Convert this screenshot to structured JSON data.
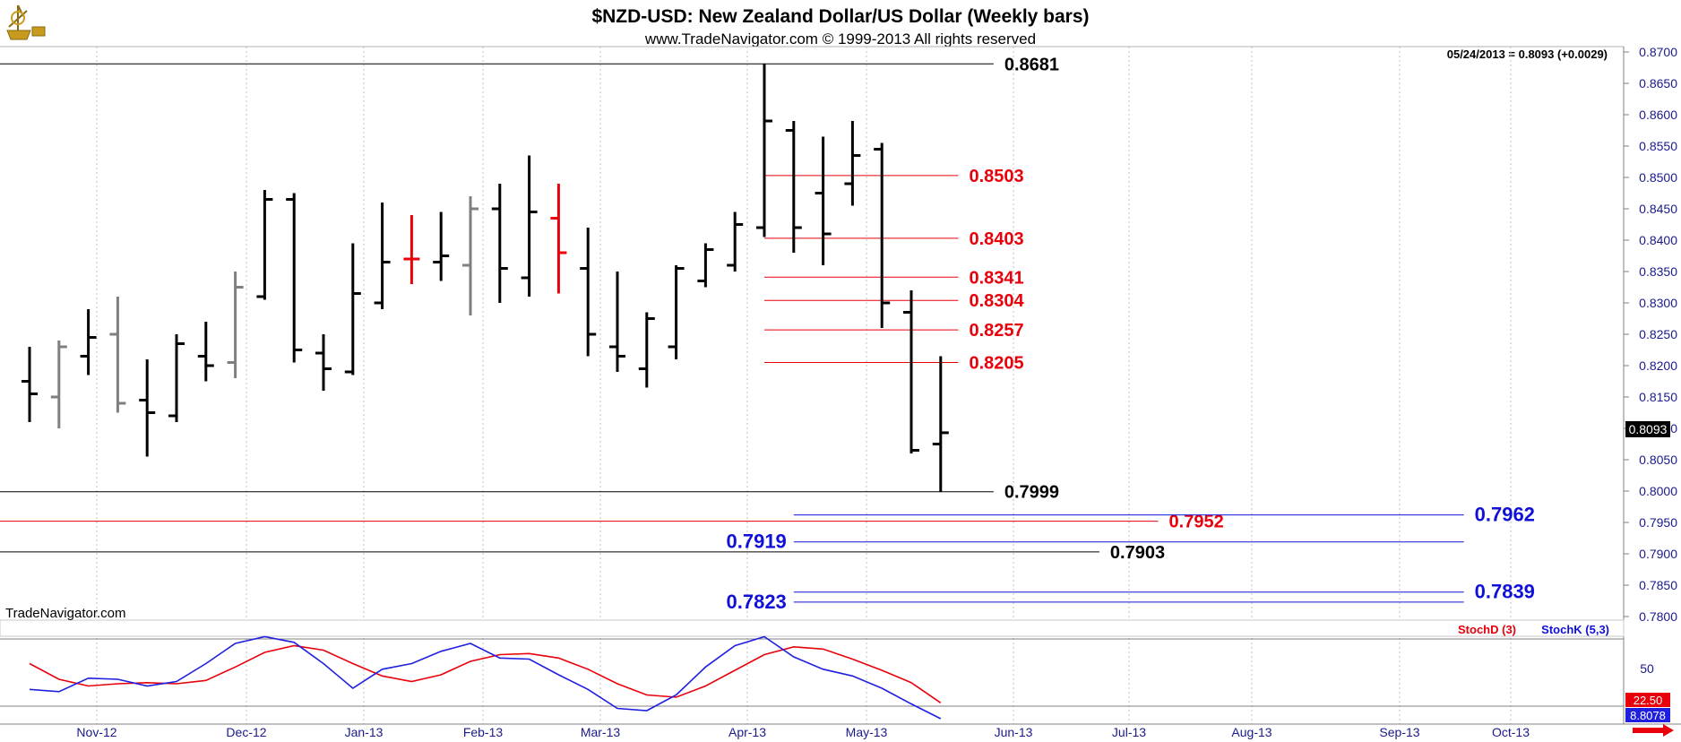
{
  "header": {
    "title": "$NZD-USD:  New Zealand Dollar/US Dollar  (Weekly bars)",
    "subtitle": "www.TradeNavigator.com © 1999-2013 All rights reserved",
    "last_quote": "05/24/2013 = 0.8093 (+0.0029)",
    "watermark": "TradeNavigator.com",
    "logo_icon": "sextant-logo-icon"
  },
  "colors": {
    "background": "#ffffff",
    "bar_up_down": "#000000",
    "bar_gray": "#7f7f7f",
    "bar_red": "#e8000b",
    "level_black": "#000000",
    "level_red": "#e8000b",
    "level_blue": "#1010d8",
    "axis_text": "#1a1a8c",
    "stochD": "#e8000b",
    "stochK": "#1f1fe0",
    "logo_gold": "#c89a1e"
  },
  "chart_data": [
    {
      "type": "ohlc",
      "title": "$NZD-USD:  New Zealand Dollar/US Dollar  (Weekly bars)",
      "ylim": [
        0.7765,
        0.8705
      ],
      "y_ticks": [
        "0.8700",
        "0.8650",
        "0.8600",
        "0.8550",
        "0.8500",
        "0.8450",
        "0.8400",
        "0.8350",
        "0.8300",
        "0.8250",
        "0.8200",
        "0.8150",
        "0.8100",
        "0.8050",
        "0.8000",
        "0.7950",
        "0.7900",
        "0.7850",
        "0.7800"
      ],
      "x_ticks": [
        "Nov-12",
        "Dec-12",
        "Jan-13",
        "Feb-13",
        "Mar-13",
        "Apr-13",
        "May-13",
        "Jun-13",
        "Jul-13",
        "Aug-13",
        "Sep-13",
        "Oct-13"
      ],
      "current_price_label": "0.8093",
      "current_price": 0.8093,
      "bars": [
        {
          "o": 0.8175,
          "h": 0.823,
          "l": 0.811,
          "c": 0.8155,
          "color": "black"
        },
        {
          "o": 0.815,
          "h": 0.824,
          "l": 0.81,
          "c": 0.823,
          "color": "gray"
        },
        {
          "o": 0.8215,
          "h": 0.829,
          "l": 0.8185,
          "c": 0.8245,
          "color": "black"
        },
        {
          "o": 0.825,
          "h": 0.831,
          "l": 0.8125,
          "c": 0.814,
          "color": "gray"
        },
        {
          "o": 0.8145,
          "h": 0.821,
          "l": 0.8055,
          "c": 0.8125,
          "color": "black"
        },
        {
          "o": 0.812,
          "h": 0.825,
          "l": 0.811,
          "c": 0.8235,
          "color": "black"
        },
        {
          "o": 0.8215,
          "h": 0.827,
          "l": 0.8175,
          "c": 0.82,
          "color": "black"
        },
        {
          "o": 0.8205,
          "h": 0.835,
          "l": 0.818,
          "c": 0.8325,
          "color": "gray"
        },
        {
          "o": 0.831,
          "h": 0.848,
          "l": 0.8305,
          "c": 0.8465,
          "color": "black"
        },
        {
          "o": 0.8465,
          "h": 0.8475,
          "l": 0.8205,
          "c": 0.8225,
          "color": "black"
        },
        {
          "o": 0.822,
          "h": 0.825,
          "l": 0.816,
          "c": 0.8195,
          "color": "black"
        },
        {
          "o": 0.819,
          "h": 0.8395,
          "l": 0.8185,
          "c": 0.8315,
          "color": "black"
        },
        {
          "o": 0.83,
          "h": 0.846,
          "l": 0.829,
          "c": 0.8365,
          "color": "black"
        },
        {
          "o": 0.837,
          "h": 0.844,
          "l": 0.833,
          "c": 0.837,
          "color": "red"
        },
        {
          "o": 0.8365,
          "h": 0.8445,
          "l": 0.8335,
          "c": 0.8375,
          "color": "black"
        },
        {
          "o": 0.836,
          "h": 0.847,
          "l": 0.828,
          "c": 0.845,
          "color": "gray"
        },
        {
          "o": 0.845,
          "h": 0.849,
          "l": 0.83,
          "c": 0.8355,
          "color": "black"
        },
        {
          "o": 0.834,
          "h": 0.8535,
          "l": 0.831,
          "c": 0.8445,
          "color": "black"
        },
        {
          "o": 0.8435,
          "h": 0.849,
          "l": 0.8315,
          "c": 0.838,
          "color": "red"
        },
        {
          "o": 0.8355,
          "h": 0.842,
          "l": 0.8215,
          "c": 0.825,
          "color": "black"
        },
        {
          "o": 0.823,
          "h": 0.835,
          "l": 0.819,
          "c": 0.8215,
          "color": "black"
        },
        {
          "o": 0.8195,
          "h": 0.8285,
          "l": 0.8165,
          "c": 0.8275,
          "color": "black"
        },
        {
          "o": 0.823,
          "h": 0.836,
          "l": 0.821,
          "c": 0.8355,
          "color": "black"
        },
        {
          "o": 0.8335,
          "h": 0.8395,
          "l": 0.8325,
          "c": 0.8385,
          "color": "black"
        },
        {
          "o": 0.836,
          "h": 0.8445,
          "l": 0.835,
          "c": 0.8425,
          "color": "black"
        },
        {
          "o": 0.842,
          "h": 0.8681,
          "l": 0.8405,
          "c": 0.859,
          "color": "black"
        },
        {
          "o": 0.8575,
          "h": 0.859,
          "l": 0.838,
          "c": 0.842,
          "color": "black"
        },
        {
          "o": 0.8475,
          "h": 0.8565,
          "l": 0.836,
          "c": 0.841,
          "color": "black"
        },
        {
          "o": 0.849,
          "h": 0.859,
          "l": 0.8455,
          "c": 0.8535,
          "color": "black"
        },
        {
          "o": 0.8545,
          "h": 0.8555,
          "l": 0.826,
          "c": 0.83,
          "color": "black"
        },
        {
          "o": 0.8285,
          "h": 0.832,
          "l": 0.806,
          "c": 0.8065,
          "color": "black"
        },
        {
          "o": 0.8075,
          "h": 0.8215,
          "l": 0.7999,
          "c": 0.8093,
          "color": "black"
        }
      ],
      "levels": [
        {
          "label": "0.8681",
          "value": 0.8681,
          "color": "black",
          "x_start_week": -1.5,
          "x_end_week": 32.8,
          "label_side": "right"
        },
        {
          "label": "0.7999",
          "value": 0.7999,
          "color": "black",
          "x_start_week": -1.5,
          "x_end_week": 32.8,
          "label_side": "right"
        },
        {
          "label": "0.7903",
          "value": 0.7903,
          "color": "black",
          "x_start_week": -1.5,
          "x_end_week": 36.4,
          "label_side": "right"
        },
        {
          "label": "0.8503",
          "value": 0.8503,
          "color": "red",
          "x_start_week": 25.0,
          "x_end_week": 31.6,
          "label_side": "right"
        },
        {
          "label": "0.8403",
          "value": 0.8403,
          "color": "red",
          "x_start_week": 25.0,
          "x_end_week": 31.6,
          "label_side": "right"
        },
        {
          "label": "0.8341",
          "value": 0.8341,
          "color": "red",
          "x_start_week": 25.0,
          "x_end_week": 31.6,
          "label_side": "right"
        },
        {
          "label": "0.8304",
          "value": 0.8304,
          "color": "red",
          "x_start_week": 25.0,
          "x_end_week": 31.6,
          "label_side": "right"
        },
        {
          "label": "0.8257",
          "value": 0.8257,
          "color": "red",
          "x_start_week": 25.0,
          "x_end_week": 31.6,
          "label_side": "right"
        },
        {
          "label": "0.8205",
          "value": 0.8205,
          "color": "red",
          "x_start_week": 25.0,
          "x_end_week": 31.6,
          "label_side": "right"
        },
        {
          "label": "0.7952",
          "value": 0.7952,
          "color": "red",
          "x_start_week": -1.5,
          "x_end_week": 38.4,
          "label_side": "right"
        },
        {
          "label": "0.7962",
          "value": 0.7962,
          "color": "blue",
          "x_start_week": 26.0,
          "x_end_week": 48.8,
          "label_side": "right"
        },
        {
          "label": "0.7919",
          "value": 0.7919,
          "color": "blue",
          "x_start_week": 26.0,
          "x_end_week": 48.8,
          "label_side": "left"
        },
        {
          "label": "0.7839",
          "value": 0.7839,
          "color": "blue",
          "x_start_week": 26.0,
          "x_end_week": 48.8,
          "label_side": "right"
        },
        {
          "label": "0.7823",
          "value": 0.7823,
          "color": "blue",
          "x_start_week": 26.0,
          "x_end_week": 48.8,
          "label_side": "left"
        }
      ]
    },
    {
      "type": "line",
      "title": "",
      "ylim": [
        5,
        95
      ],
      "y_ticks": [
        "50"
      ],
      "reference_lines": [
        80,
        20
      ],
      "legend": [
        "StochD (3)",
        "StochK (5,3)"
      ],
      "last_values": {
        "StochD": "22.50",
        "StochK": "8.8078"
      },
      "series": [
        {
          "name": "StochD (3)",
          "color": "red",
          "values": [
            58,
            44,
            38,
            40,
            41,
            40,
            43,
            55,
            68,
            74,
            70,
            58,
            47,
            42,
            48,
            60,
            66,
            67,
            63,
            53,
            40,
            30,
            28,
            38,
            52,
            66,
            73,
            71,
            62,
            52,
            41,
            23
          ]
        },
        {
          "name": "StochK (5,3)",
          "color": "blue",
          "values": [
            35,
            33,
            45,
            44,
            38,
            42,
            58,
            76,
            82,
            77,
            58,
            36,
            53,
            58,
            69,
            76,
            63,
            62,
            48,
            35,
            18,
            16,
            30,
            55,
            74,
            82,
            64,
            53,
            47,
            36,
            22,
            8.8
          ]
        }
      ]
    }
  ]
}
